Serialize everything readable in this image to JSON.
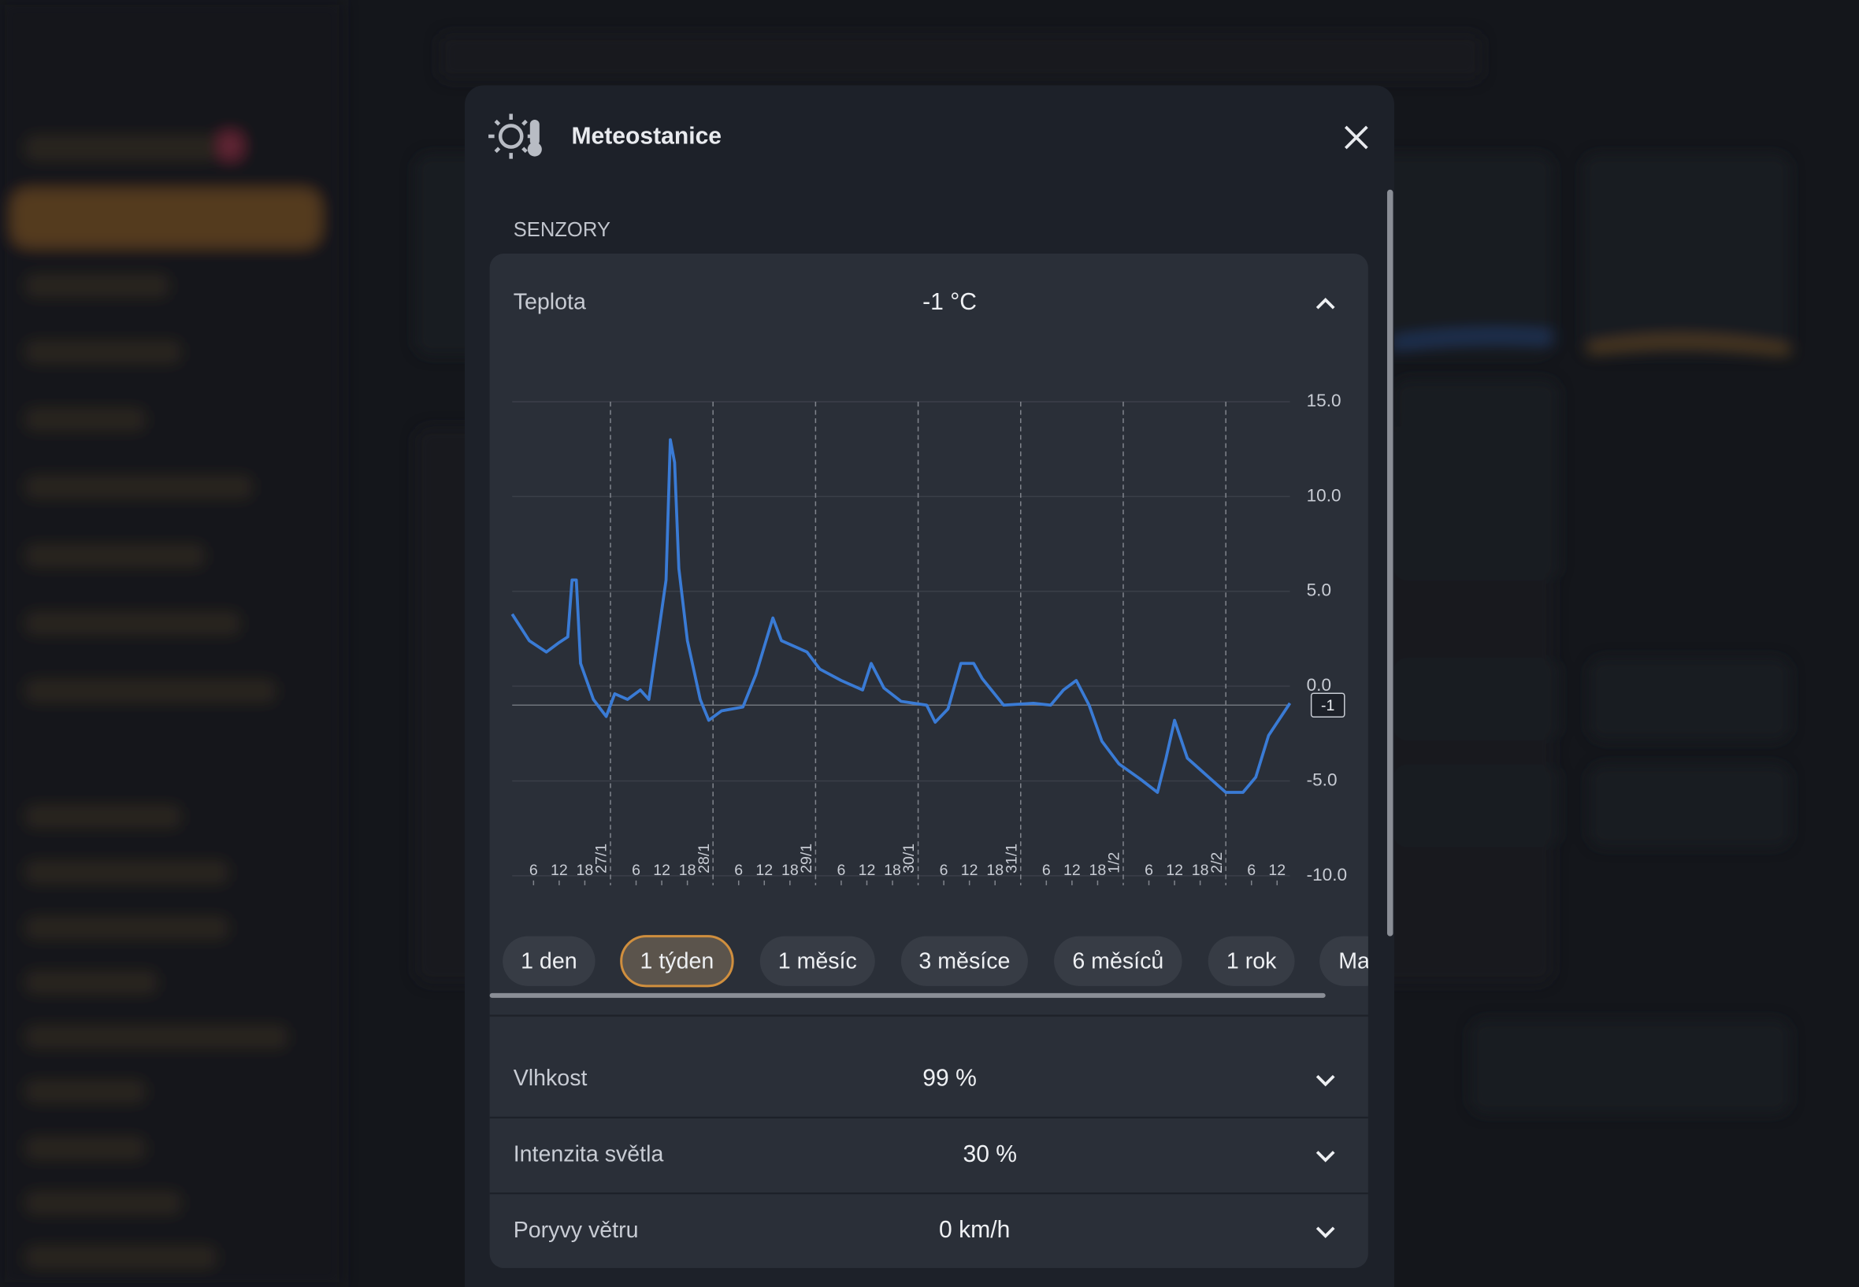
{
  "dialog": {
    "title": "Meteostanice",
    "section": "SENZORY"
  },
  "sensors": [
    {
      "name": "Teplota",
      "value": "-1 °C"
    },
    {
      "name": "Vlhkost",
      "value": "99 %"
    },
    {
      "name": "Intenzita světla",
      "value": "30 %"
    },
    {
      "name": "Poryvy větru",
      "value": "0 km/h"
    }
  ],
  "ranges": [
    "1 den",
    "1 týden",
    "1 měsíc",
    "3 měsíce",
    "6 měsíců",
    "1 rok",
    "Ma"
  ],
  "selected_range": "1 týden",
  "chart_data": {
    "type": "line",
    "x": [
      1,
      5,
      9,
      12,
      14,
      15,
      16,
      17,
      20,
      23,
      25,
      28,
      31,
      33,
      35,
      37,
      38,
      39,
      40,
      42,
      45,
      47,
      50,
      55,
      58,
      62,
      64,
      70,
      73,
      78,
      83,
      85,
      88,
      92,
      98,
      100,
      103,
      106,
      109,
      111,
      116,
      123,
      127,
      130,
      133,
      136,
      139,
      143,
      148,
      152,
      154,
      156,
      159,
      164,
      168,
      172,
      175,
      178,
      183
    ],
    "series": [
      {
        "color": "#3a7bd5",
        "values": [
          3.8,
          2.4,
          1.8,
          2.3,
          2.6,
          5.6,
          5.6,
          1.2,
          -0.7,
          -1.6,
          -0.4,
          -0.7,
          -0.2,
          -0.7,
          2.4,
          5.6,
          13,
          11.8,
          6.2,
          2.4,
          -0.7,
          -1.8,
          -1.3,
          -1.1,
          0.6,
          3.6,
          2.4,
          1.8,
          0.9,
          0.3,
          -0.2,
          1.2,
          -0.1,
          -0.8,
          -1.0,
          -1.9,
          -1.2,
          1.2,
          1.2,
          0.4,
          -1.0,
          -0.9,
          -1.0,
          -0.2,
          0.3,
          -1.0,
          -2.9,
          -4.1,
          -4.9,
          -5.6,
          -3.8,
          -1.8,
          -3.8,
          -4.8,
          -5.6,
          -5.6,
          -4.8,
          -2.6,
          -0.9
        ]
      }
    ],
    "xlim": [
      1,
      183
    ],
    "xticks": [
      6,
      12,
      18,
      {
        "value": 24,
        "label": "27/1"
      },
      {
        "value": 30,
        "label": "6"
      },
      {
        "value": 36,
        "label": "12"
      },
      {
        "value": 42,
        "label": "18"
      },
      {
        "value": 48,
        "label": "28/1"
      },
      {
        "value": 54,
        "label": "6"
      },
      {
        "value": 60,
        "label": "12"
      },
      {
        "value": 66,
        "label": "18"
      },
      {
        "value": 72,
        "label": "29/1"
      },
      {
        "value": 78,
        "label": "6"
      },
      {
        "value": 84,
        "label": "12"
      },
      {
        "value": 90,
        "label": "18"
      },
      {
        "value": 96,
        "label": "30/1"
      },
      {
        "value": 102,
        "label": "6"
      },
      {
        "value": 108,
        "label": "12"
      },
      {
        "value": 114,
        "label": "18"
      },
      {
        "value": 120,
        "label": "31/1"
      },
      {
        "value": 126,
        "label": "6"
      },
      {
        "value": 132,
        "label": "12"
      },
      {
        "value": 138,
        "label": "18"
      },
      {
        "value": 144,
        "label": "1/2"
      },
      {
        "value": 150,
        "label": "6"
      },
      {
        "value": 156,
        "label": "12"
      },
      {
        "value": 162,
        "label": "18"
      },
      {
        "value": 168,
        "label": "2/2"
      },
      {
        "value": 174,
        "label": "6"
      },
      {
        "value": 180,
        "label": "12"
      }
    ],
    "ylim": [
      -10,
      15
    ],
    "yticks": [
      {
        "value": 15,
        "label": "15.0"
      },
      {
        "value": 10,
        "label": "10.0"
      },
      {
        "value": 5,
        "label": "5.0"
      },
      {
        "value": 0,
        "label": "0.0"
      },
      {
        "value": -5,
        "label": "-5.0"
      },
      {
        "value": -10,
        "label": "-10.0"
      }
    ],
    "current_value": -1,
    "grid": true
  }
}
